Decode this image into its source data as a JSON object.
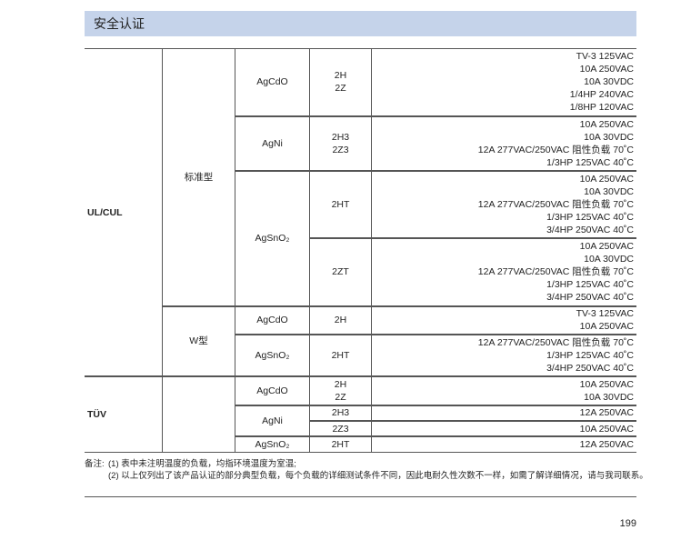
{
  "header": {
    "title": "安全认证"
  },
  "table": {
    "certs": [
      {
        "name": "UL/CUL",
        "types": [
          {
            "name": "标准型",
            "materials": [
              {
                "name": "AgCdO",
                "contacts": [
                  {
                    "forms": [
                      "2H",
                      "2Z"
                    ],
                    "ratings": [
                      "TV-3 125VAC",
                      "10A 250VAC",
                      "10A 30VDC",
                      "1/4HP 240VAC",
                      "1/8HP 120VAC"
                    ]
                  }
                ]
              },
              {
                "name": "AgNi",
                "contacts": [
                  {
                    "forms": [
                      "2H3",
                      "2Z3"
                    ],
                    "ratings": [
                      "10A 250VAC",
                      "10A 30VDC",
                      "12A 277VAC/250VAC 阻性负载 70˚C",
                      "1/3HP 125VAC 40˚C"
                    ]
                  }
                ]
              },
              {
                "name": "AgSnO₂",
                "contacts": [
                  {
                    "forms": [
                      "2HT"
                    ],
                    "ratings": [
                      "10A 250VAC",
                      "10A 30VDC",
                      "12A 277VAC/250VAC 阻性负载 70˚C",
                      "1/3HP 125VAC 40˚C",
                      "3/4HP 250VAC 40˚C"
                    ]
                  },
                  {
                    "forms": [
                      "2ZT"
                    ],
                    "ratings": [
                      "10A 250VAC",
                      "10A 30VDC",
                      "12A 277VAC/250VAC 阻性负载 70˚C",
                      "1/3HP 125VAC 40˚C",
                      "3/4HP 250VAC 40˚C"
                    ]
                  }
                ]
              }
            ]
          },
          {
            "name": "W型",
            "materials": [
              {
                "name": "AgCdO",
                "contacts": [
                  {
                    "forms": [
                      "2H"
                    ],
                    "ratings": [
                      "TV-3 125VAC",
                      "10A 250VAC"
                    ]
                  }
                ]
              },
              {
                "name": "AgSnO₂",
                "contacts": [
                  {
                    "forms": [
                      "2HT"
                    ],
                    "ratings": [
                      "12A 277VAC/250VAC 阻性负载 70˚C",
                      "1/3HP 125VAC 40˚C",
                      "3/4HP 250VAC 40˚C"
                    ]
                  }
                ]
              }
            ]
          }
        ]
      },
      {
        "name": "TÜV",
        "types": [
          {
            "materials": [
              {
                "name": "AgCdO",
                "contacts": [
                  {
                    "forms": [
                      "2H",
                      "2Z"
                    ],
                    "ratings": [
                      "10A 250VAC",
                      "10A 30VDC"
                    ]
                  }
                ]
              },
              {
                "name": "AgNi",
                "contacts": [
                  {
                    "forms": [
                      "2H3"
                    ],
                    "ratings": [
                      "12A 250VAC"
                    ]
                  },
                  {
                    "forms": [
                      "2Z3"
                    ],
                    "ratings": [
                      "10A 250VAC"
                    ]
                  }
                ]
              },
              {
                "name": "AgSnO₂",
                "contacts": [
                  {
                    "forms": [
                      "2HT"
                    ],
                    "ratings": [
                      "12A 250VAC"
                    ]
                  }
                ]
              }
            ]
          }
        ]
      }
    ]
  },
  "notes": {
    "label": "备注:",
    "items": [
      "(1) 表中未注明温度的负载，均指环境温度为室温;",
      "(2) 以上仅列出了该产品认证的部分典型负载，每个负载的详细测试条件不同，因此电耐久性次数不一样，如需了解详细情况，请与我司联系。"
    ]
  },
  "page_number": "199"
}
